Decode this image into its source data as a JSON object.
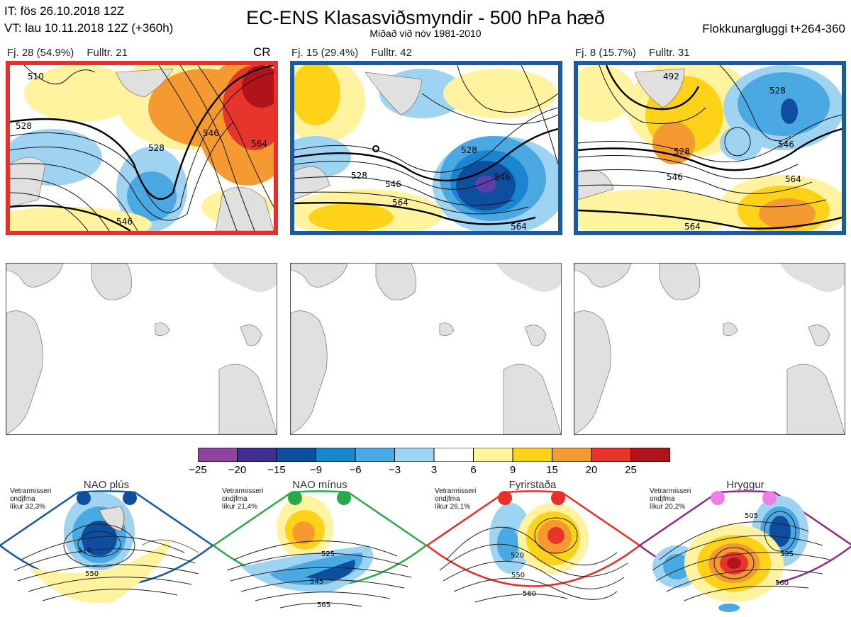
{
  "header": {
    "issue_time": "IT: fös 26.10.2018 12Z",
    "valid_time": "VT: lau 10.11.2018 12Z  (+360h)",
    "title": "EC-ENS Klasasviðsmyndir - 500 hPa hæð",
    "subtitle": "Miðað við nóv 1981-2010",
    "window": "Flokkunargluggi t+264-360"
  },
  "clusters": [
    {
      "members": "Fj. 28 (54.9%)",
      "representative": "Fulltr. 21",
      "tag": "CR",
      "border_color": "#e8302a",
      "contour_labels": [
        "510",
        "528",
        "546",
        "564",
        "546",
        "528"
      ]
    },
    {
      "members": "Fj. 15 (29.4%)",
      "representative": "Fulltr. 42",
      "tag": "",
      "border_color": "#1a5aa0",
      "contour_labels": [
        "528",
        "546",
        "564",
        "528",
        "546",
        "564"
      ]
    },
    {
      "members": "Fj. 8 (15.7%)",
      "representative": "Fulltr. 31",
      "tag": "",
      "border_color": "#1a5aa0",
      "contour_labels": [
        "528",
        "546",
        "564",
        "528",
        "546",
        "492",
        "564"
      ]
    }
  ],
  "colorbar": {
    "ticks": [
      "−25",
      "−20",
      "−15",
      "−9",
      "−6",
      "−3",
      "3",
      "6",
      "9",
      "15",
      "20",
      "25"
    ],
    "colors": [
      "#8e44a0",
      "#3f2e8f",
      "#0d4f9e",
      "#1a86d0",
      "#4aa8e3",
      "#9fd3f2",
      "#ffffff",
      "#fff3a0",
      "#ffd21a",
      "#f59a30",
      "#e8352c",
      "#b0141a"
    ]
  },
  "regimes": [
    {
      "name": "NAO plús",
      "note_line1": "Vetrarmisseri",
      "note_line2": "ondjfma",
      "note_line3": "líkur 32,3%",
      "frame_color": "#1a5aa0",
      "dot_color": "#0d4f9e",
      "contour_labels": [
        "510",
        "550"
      ]
    },
    {
      "name": "NAO mínus",
      "note_line1": "Vetrarmisseri",
      "note_line2": "ondjfma",
      "note_line3": "líkur 21,4%",
      "frame_color": "#2ea84a",
      "dot_color": "#2aa84a",
      "contour_labels": [
        "525",
        "545",
        "565"
      ]
    },
    {
      "name": "Fyrirstaða",
      "note_line1": "Vetrarmisseri",
      "note_line2": "ondjfma",
      "note_line3": "líkur 26,1%",
      "frame_color": "#e8302a",
      "dot_color": "#e8302a",
      "contour_labels": [
        "520",
        "550",
        "560"
      ]
    },
    {
      "name": "Hryggur",
      "note_line1": "Vetrarmisseri",
      "note_line2": "ondjfma",
      "note_line3": "líkur 20,2%",
      "frame_color": "#8e2c8e",
      "dot_color": "#ee7ee8",
      "contour_labels": [
        "505",
        "535",
        "560"
      ]
    }
  ]
}
